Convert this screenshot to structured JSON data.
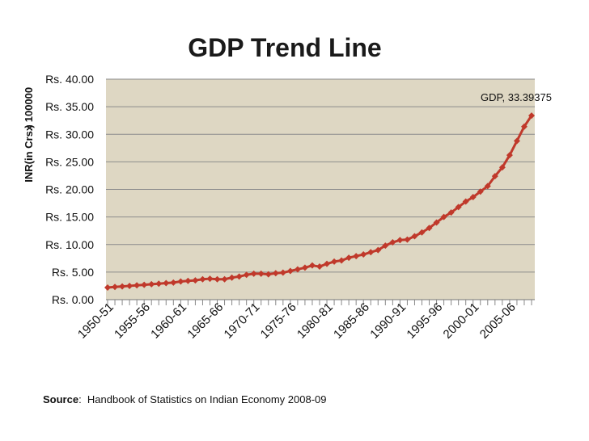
{
  "chart_data": {
    "type": "line",
    "title": "GDP Trend Line",
    "ylabel": "INR(in Crs.)",
    "yunit_label": "x 100000",
    "ylim": [
      0,
      40
    ],
    "yticks": [
      0,
      5,
      10,
      15,
      20,
      25,
      30,
      35,
      40
    ],
    "ytick_labels": [
      "Rs. 0.00",
      "Rs. 5.00",
      "Rs. 10.00",
      "Rs. 15.00",
      "Rs. 20.00",
      "Rs. 25.00",
      "Rs. 30.00",
      "Rs. 35.00",
      "Rs. 40.00"
    ],
    "xtick_labels": [
      "1950-51",
      "1955-56",
      "1960-61",
      "1965-66",
      "1970-71",
      "1975-76",
      "1980-81",
      "1985-86",
      "1990-91",
      "1995-96",
      "2000-01",
      "2005-06"
    ],
    "grid": true,
    "legend": "none",
    "colors": {
      "line": "#c0392b",
      "marker": "#c0392b",
      "plot_background": "#ded7c3",
      "grid": "#8c8c8c"
    },
    "annotation": {
      "text": "GDP, 33.39375",
      "point_index": 58
    },
    "series": [
      {
        "x": [
          "1950-51",
          "1951-52",
          "1952-53",
          "1953-54",
          "1954-55",
          "1955-56",
          "1956-57",
          "1957-58",
          "1958-59",
          "1959-60",
          "1960-61",
          "1961-62",
          "1962-63",
          "1963-64",
          "1964-65",
          "1965-66",
          "1966-67",
          "1967-68",
          "1968-69",
          "1969-70",
          "1970-71",
          "1971-72",
          "1972-73",
          "1973-74",
          "1974-75",
          "1975-76",
          "1976-77",
          "1977-78",
          "1978-79",
          "1979-80",
          "1980-81",
          "1981-82",
          "1982-83",
          "1983-84",
          "1984-85",
          "1985-86",
          "1986-87",
          "1987-88",
          "1988-89",
          "1989-90",
          "1990-91",
          "1991-92",
          "1992-93",
          "1993-94",
          "1994-95",
          "1995-96",
          "1996-97",
          "1997-98",
          "1998-99",
          "1999-00",
          "2000-01",
          "2001-02",
          "2002-03",
          "2003-04",
          "2004-05",
          "2005-06",
          "2006-07",
          "2007-08",
          "2008-09"
        ],
        "values": [
          2.2,
          2.3,
          2.4,
          2.5,
          2.6,
          2.7,
          2.8,
          2.9,
          3.0,
          3.1,
          3.3,
          3.4,
          3.5,
          3.7,
          3.8,
          3.7,
          3.7,
          4.0,
          4.2,
          4.5,
          4.7,
          4.7,
          4.6,
          4.8,
          4.9,
          5.2,
          5.5,
          5.8,
          6.2,
          6.0,
          6.5,
          6.9,
          7.1,
          7.6,
          7.9,
          8.2,
          8.6,
          9.0,
          9.8,
          10.4,
          10.8,
          10.9,
          11.5,
          12.2,
          13.0,
          14.0,
          15.0,
          15.8,
          16.8,
          17.8,
          18.6,
          19.6,
          20.6,
          22.4,
          24.0,
          26.2,
          28.8,
          31.4,
          33.39375
        ]
      }
    ]
  },
  "source": {
    "label": "Source",
    "text": "Handbook of Statistics on Indian Economy 2008-09"
  }
}
